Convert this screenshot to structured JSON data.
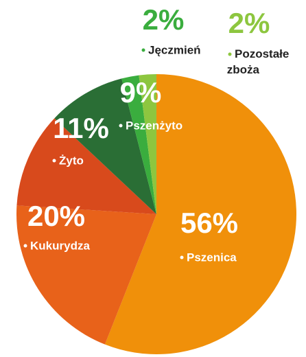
{
  "chart_data": {
    "type": "pie",
    "categories": [
      "Pszenica",
      "Kukurydza",
      "Żyto",
      "Pszenżyto",
      "Jęczmień",
      "Pozostałe zboża"
    ],
    "values": [
      56,
      20,
      11,
      9,
      2,
      2
    ],
    "value_labels": [
      "56%",
      "20%",
      "11%",
      "9%",
      "2%",
      "2%"
    ],
    "colors": [
      "#f0900a",
      "#e8621a",
      "#d84a1c",
      "#2a6e35",
      "#3aad3e",
      "#8dc63f"
    ]
  }
}
